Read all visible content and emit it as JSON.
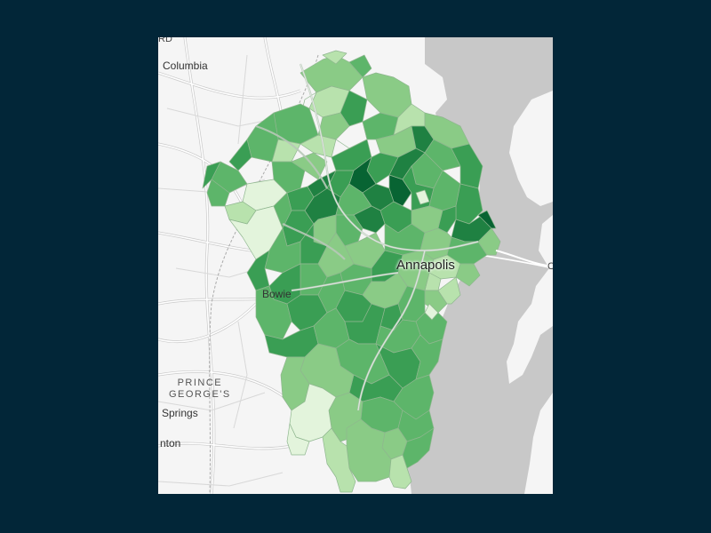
{
  "map": {
    "style": "light-gray basemap with green choropleth of small districts",
    "colors": {
      "background": "#022638",
      "land": "#f5f5f5",
      "water": "#c8c8c8",
      "road": "#ffffff",
      "road_casing": "#c9c9c9",
      "choropleth_scale": [
        "#e3f4dc",
        "#b8e2ad",
        "#8acb86",
        "#5db56a",
        "#3a9e54",
        "#1f8142",
        "#086433"
      ]
    },
    "labels": {
      "columbia": "Columbia",
      "annapolis": "Annapolis",
      "bowie": "Bowie",
      "prince_georges_line1": "PRINCE",
      "prince_georges_line2": "GEORGE'S",
      "springs": "Springs",
      "nton": "nton",
      "rd": "RD",
      "c_right": "C"
    }
  }
}
